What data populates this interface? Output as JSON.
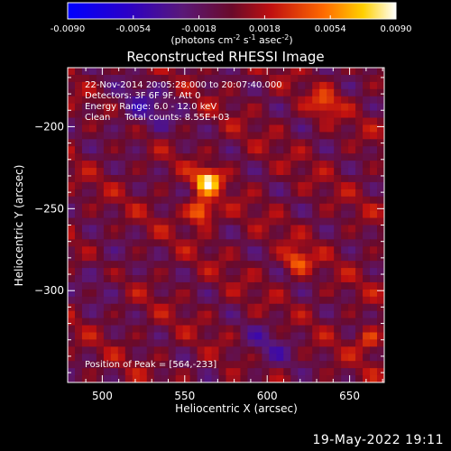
{
  "colorbar": {
    "ticks": [
      "-0.0090",
      "-0.0054",
      "-0.0018",
      "0.0018",
      "0.0054",
      "0.0090"
    ],
    "units_line": "(photons cm",
    "units_exp1": "-2",
    "units_mid1": " s",
    "units_exp2": "-1",
    "units_mid2": " asec",
    "units_exp3": "-2",
    "units_end": ")"
  },
  "plot": {
    "title": "Reconstructed RHESSI Image",
    "info_lines": [
      "22-Nov-2014 20:05:28.000 to 20:07:40.000",
      "Detectors: 3F 6F 9F, Att 0",
      "Energy Range: 6.0 - 12.0 keV",
      "Clean     Total counts: 8.55E+03"
    ],
    "peak_label": "Position of Peak = [564,-233]"
  },
  "footer": {
    "date": "19-May-2022 19:11"
  },
  "chart_data": {
    "type": "heatmap",
    "title": "Reconstructed RHESSI Image",
    "xlabel": "Heliocentric X (arcsec)",
    "ylabel": "Heliocentric Y (arcsec)",
    "x_ticks": [
      500,
      550,
      600,
      650
    ],
    "y_ticks": [
      -200,
      -250,
      -300
    ],
    "xlim": [
      479,
      671
    ],
    "ylim": [
      -356,
      -164
    ],
    "colorbar_range": [
      -0.009,
      0.009
    ],
    "colormap": "hot-purple-blue",
    "peak_position": [
      564,
      -233
    ],
    "sources": [
      {
        "x": 564,
        "y": -233,
        "intensity": 1.0
      },
      {
        "x": 560,
        "y": -252,
        "intensity": 0.85
      },
      {
        "x": 618,
        "y": -282,
        "intensity": 0.6
      },
      {
        "x": 635,
        "y": -186,
        "intensity": 0.5
      },
      {
        "x": 662,
        "y": -330,
        "intensity": 0.45
      }
    ]
  }
}
